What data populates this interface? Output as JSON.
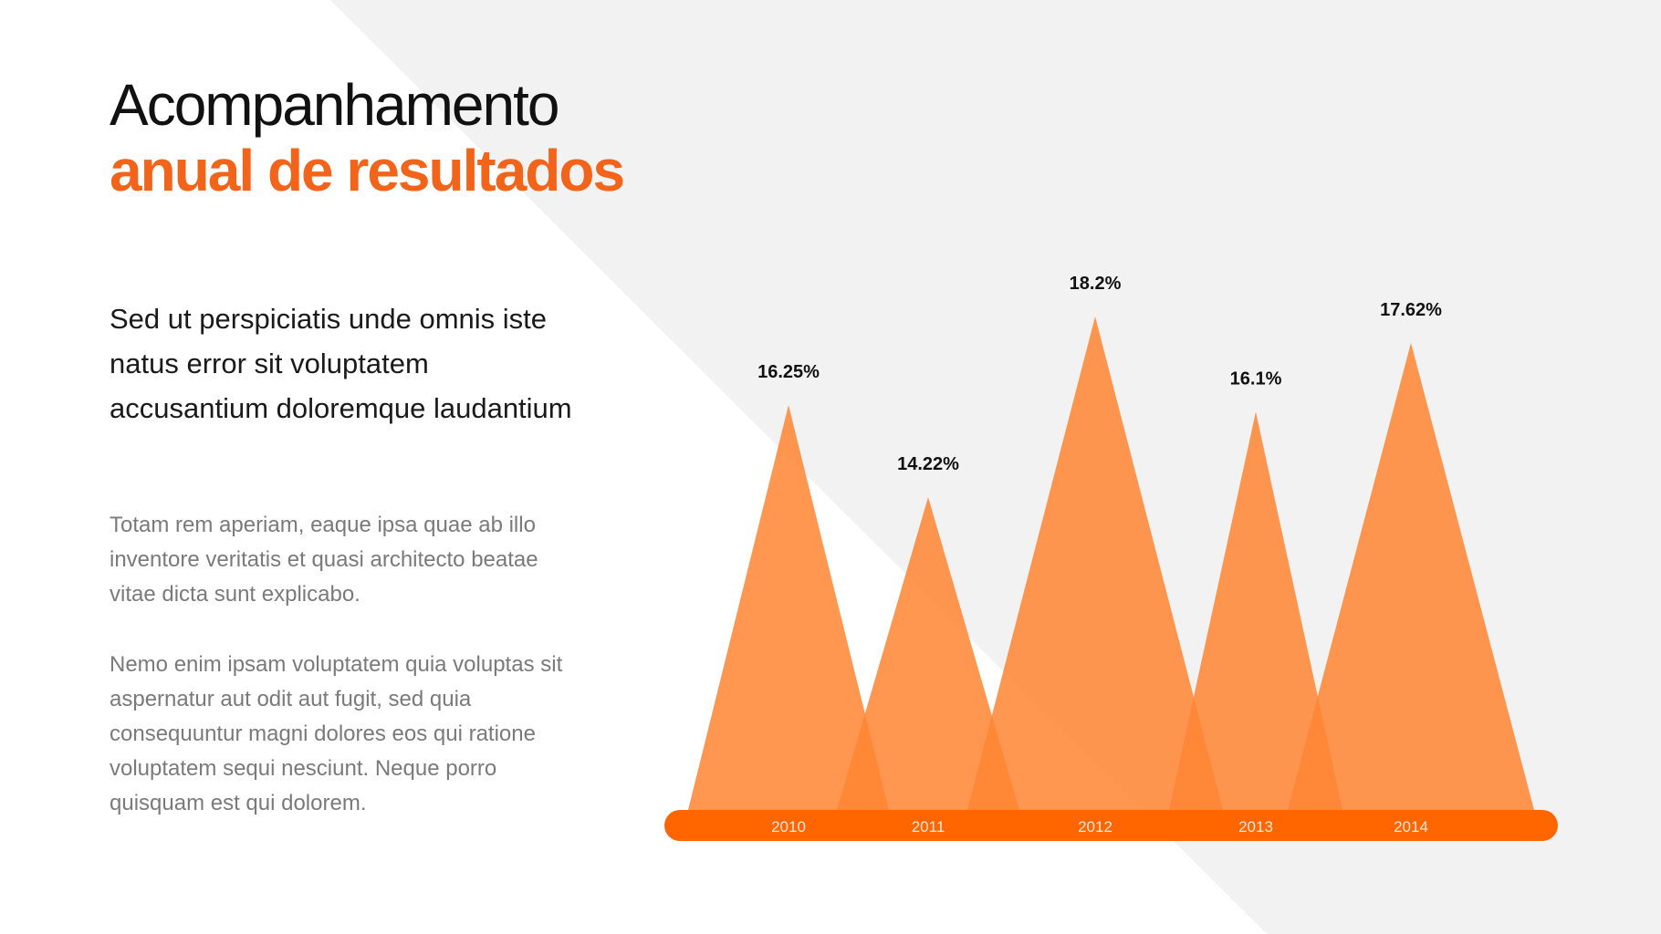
{
  "header": {
    "title_line_1": "Acompanhamento",
    "title_line_2": "anual de resultados"
  },
  "text": {
    "lead": "Sed ut perspiciatis unde omnis iste natus error sit voluptatem accusantium doloremque laudantium",
    "paragraph_1": "Totam rem aperiam, eaque ipsa quae ab illo inventore veritatis et quasi architecto beatae vitae dicta sunt explicabo.",
    "paragraph_2": "Nemo enim ipsam voluptatem quia voluptas sit aspernatur aut odit aut fugit, sed quia consequuntur magni dolores eos qui ratione voluptatem sequi nesciunt. Neque porro quisquam est qui dolorem."
  },
  "colors": {
    "accent": "#f26419",
    "peak_fill": "#ff8533",
    "baseline_bar": "#ff6600",
    "background_shape": "#f2f2f2",
    "title_dark": "#111111",
    "body_gray": "#7a7a7a"
  },
  "chart_data": {
    "type": "area",
    "categories": [
      "2010",
      "2011",
      "2012",
      "2013",
      "2014"
    ],
    "values": [
      16.25,
      14.22,
      18.2,
      16.1,
      17.62
    ],
    "value_labels": [
      "16.25%",
      "14.22%",
      "18.2%",
      "16.1%",
      "17.62%"
    ],
    "title": "",
    "xlabel": "",
    "ylabel": "",
    "grid": false,
    "legend": "none"
  }
}
